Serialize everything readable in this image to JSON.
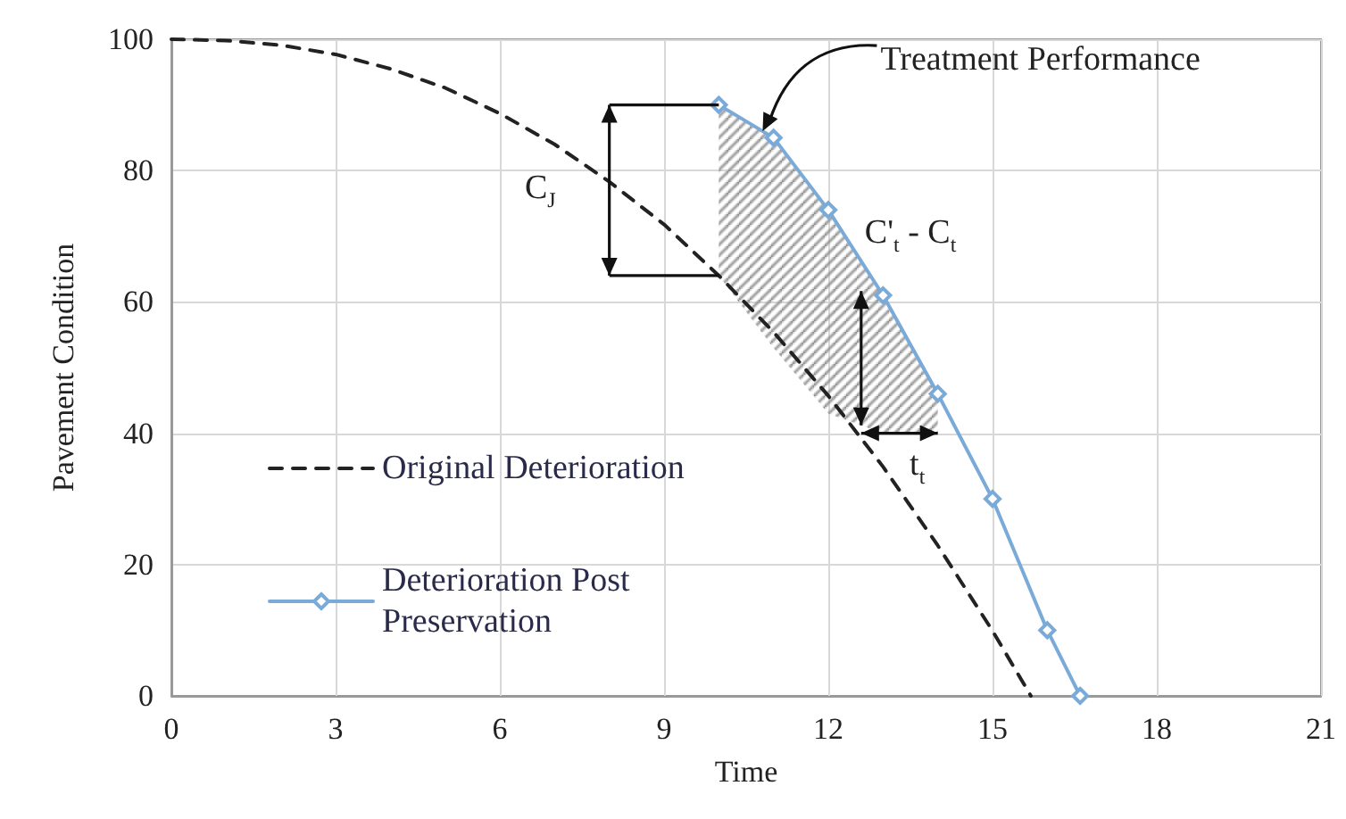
{
  "chart_data": {
    "type": "line",
    "xlabel": "Time",
    "ylabel": "Pavement Condition",
    "xlim": [
      0,
      21
    ],
    "xticks": [
      0,
      3,
      6,
      9,
      12,
      15,
      18,
      21
    ],
    "ylim": [
      0,
      100
    ],
    "yticks": [
      0,
      20,
      40,
      60,
      80,
      100
    ],
    "grid": true,
    "legend": "left",
    "series": [
      {
        "name": "Original Deterioration",
        "color": "#222222",
        "line_style": "dashed",
        "marker": "none",
        "x": [
          0,
          1,
          2,
          3,
          4,
          5,
          6,
          7,
          8,
          9,
          10,
          11,
          12,
          13,
          14,
          15,
          15.7
        ],
        "values": [
          100,
          99.8,
          99.1,
          97.7,
          95.5,
          92.6,
          88.7,
          84,
          78.3,
          71.8,
          64,
          55.4,
          45.7,
          34.9,
          22.9,
          9.9,
          0
        ]
      },
      {
        "name": "Deterioration Post Preservation",
        "color": "#7aaad8",
        "line_style": "solid",
        "marker": "diamond",
        "x": [
          10,
          11,
          12,
          13,
          14,
          15,
          16,
          16.6
        ],
        "values": [
          90,
          85,
          74,
          61,
          46,
          30,
          10,
          0
        ],
        "upper": [
          90,
          85,
          74,
          61,
          46,
          null,
          null,
          null
        ],
        "lower": [
          64,
          53,
          43,
          40,
          40,
          null,
          null,
          null
        ]
      }
    ],
    "annotations": [
      {
        "text": "Treatment Performance",
        "x": 10.8,
        "y": 86
      },
      {
        "text": "C$_{J}$",
        "x": 8,
        "y": 77
      },
      {
        "text": "C'$_{t}$ - C$_{t}$",
        "x": 12.6,
        "y": 66
      },
      {
        "text": "t$_{t}$",
        "x": 13.3,
        "y": 40
      }
    ]
  }
}
